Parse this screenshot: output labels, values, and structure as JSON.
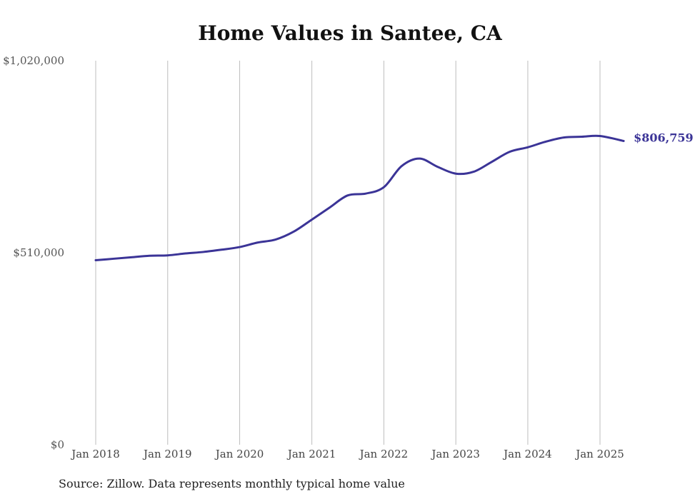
{
  "chart_data": {
    "type": "line",
    "title": "Home Values in Santee, CA",
    "xlabel": "",
    "ylabel": "",
    "ylim": [
      0,
      1020000
    ],
    "xlim": [
      "2018-01-01",
      "2025-05-01"
    ],
    "yticks": [
      {
        "value": 0,
        "label": "$0"
      },
      {
        "value": 510000,
        "label": "$510,000"
      },
      {
        "value": 1020000,
        "label": "$1,020,000"
      }
    ],
    "xticks": [
      {
        "value": "2018-01-01",
        "label": "Jan 2018"
      },
      {
        "value": "2019-01-01",
        "label": "Jan 2019"
      },
      {
        "value": "2020-01-01",
        "label": "Jan 2020"
      },
      {
        "value": "2021-01-01",
        "label": "Jan 2021"
      },
      {
        "value": "2022-01-01",
        "label": "Jan 2022"
      },
      {
        "value": "2023-01-01",
        "label": "Jan 2023"
      },
      {
        "value": "2024-01-01",
        "label": "Jan 2024"
      },
      {
        "value": "2025-01-01",
        "label": "Jan 2025"
      }
    ],
    "grid": "vertical",
    "legend": "none",
    "series": [
      {
        "color": "#3b3497",
        "end_label": "$806,759",
        "points": [
          {
            "x": "2018-01-01",
            "y": 490000
          },
          {
            "x": "2018-04-01",
            "y": 494000
          },
          {
            "x": "2018-07-01",
            "y": 498000
          },
          {
            "x": "2018-10-01",
            "y": 502000
          },
          {
            "x": "2019-01-01",
            "y": 503000
          },
          {
            "x": "2019-04-01",
            "y": 508000
          },
          {
            "x": "2019-07-01",
            "y": 512000
          },
          {
            "x": "2019-10-01",
            "y": 518000
          },
          {
            "x": "2020-01-01",
            "y": 525000
          },
          {
            "x": "2020-04-01",
            "y": 537000
          },
          {
            "x": "2020-07-01",
            "y": 545000
          },
          {
            "x": "2020-10-01",
            "y": 566000
          },
          {
            "x": "2021-01-01",
            "y": 598000
          },
          {
            "x": "2021-04-01",
            "y": 630000
          },
          {
            "x": "2021-07-01",
            "y": 662000
          },
          {
            "x": "2021-10-01",
            "y": 667000
          },
          {
            "x": "2022-01-01",
            "y": 684000
          },
          {
            "x": "2022-04-01",
            "y": 740000
          },
          {
            "x": "2022-07-01",
            "y": 760000
          },
          {
            "x": "2022-10-01",
            "y": 738000
          },
          {
            "x": "2023-01-01",
            "y": 720000
          },
          {
            "x": "2023-04-01",
            "y": 725000
          },
          {
            "x": "2023-07-01",
            "y": 751000
          },
          {
            "x": "2023-10-01",
            "y": 778000
          },
          {
            "x": "2024-01-01",
            "y": 790000
          },
          {
            "x": "2024-04-01",
            "y": 805000
          },
          {
            "x": "2024-07-01",
            "y": 816000
          },
          {
            "x": "2024-10-01",
            "y": 818000
          },
          {
            "x": "2025-01-01",
            "y": 820000
          },
          {
            "x": "2025-05-01",
            "y": 806759
          }
        ]
      }
    ],
    "source": "Source: Zillow. Data represents monthly typical home value"
  }
}
